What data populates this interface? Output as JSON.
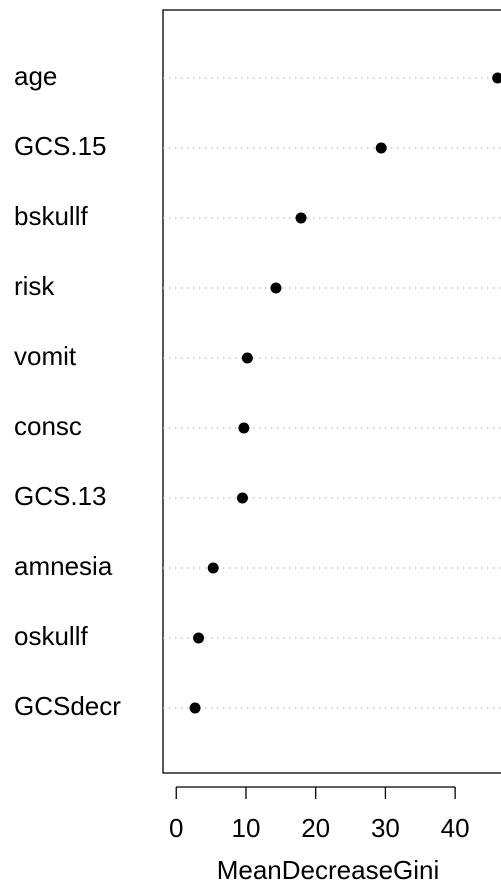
{
  "chart_data": {
    "type": "dot",
    "categories": [
      "age",
      "GCS.15",
      "bskullf",
      "risk",
      "vomit",
      "consc",
      "GCS.13",
      "amnesia",
      "oskullf",
      "GCSdecr"
    ],
    "values": [
      46.1,
      29.4,
      17.9,
      14.3,
      10.2,
      9.7,
      9.5,
      5.3,
      3.2,
      2.7
    ],
    "color": "#000000",
    "xlabel": "MeanDecreaseGini",
    "xlim": [
      -1.9,
      48.3
    ],
    "xticks": [
      0,
      10,
      20,
      30,
      40
    ]
  }
}
